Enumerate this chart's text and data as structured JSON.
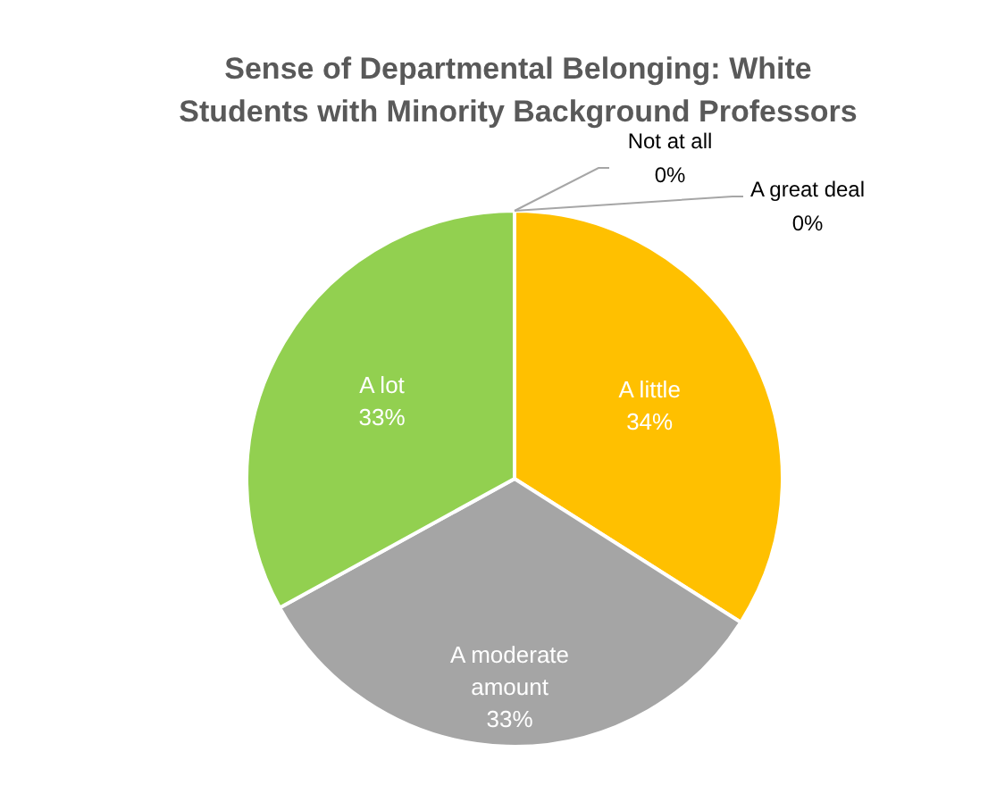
{
  "chart_data": {
    "type": "pie",
    "title": "Sense of Departmental Belonging: White Students with Minority Background Professors",
    "categories": [
      "Not at all",
      "A little",
      "A moderate amount",
      "A lot",
      "A great deal"
    ],
    "values": [
      0,
      34,
      33,
      33,
      0
    ],
    "value_labels": [
      "0%",
      "34%",
      "33%",
      "33%",
      "0%"
    ],
    "colors": [
      "#5b9bd5",
      "#ffc000",
      "#a5a5a5",
      "#92d050",
      "#4472c4"
    ],
    "legend": false
  }
}
